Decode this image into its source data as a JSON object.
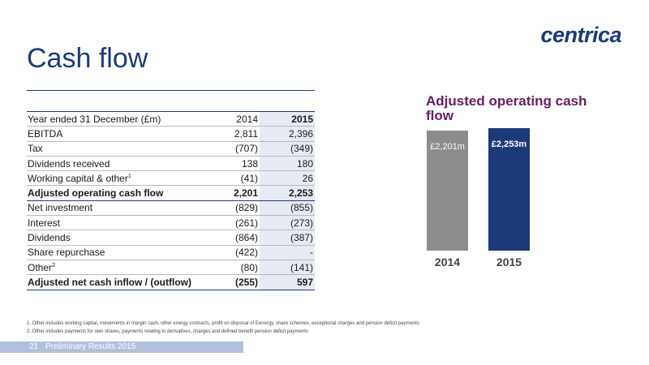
{
  "logo": "centrica",
  "title": "Cash flow",
  "table": {
    "header": {
      "label": "Year ended 31 December (£m)",
      "col1": "2014",
      "col2": "2015"
    },
    "rows": [
      {
        "label": "EBITDA",
        "sup": "",
        "v2014": "2,811",
        "v2015": "2,396",
        "bold": false
      },
      {
        "label": "Tax",
        "sup": "",
        "v2014": "(707)",
        "v2015": "(349)",
        "bold": false
      },
      {
        "label": "Dividends received",
        "sup": "",
        "v2014": "138",
        "v2015": "180",
        "bold": false
      },
      {
        "label": "Working capital & other",
        "sup": "1",
        "v2014": "(41)",
        "v2015": "26",
        "bold": false
      },
      {
        "label": "Adjusted operating cash flow",
        "sup": "",
        "v2014": "2,201",
        "v2015": "2,253",
        "bold": true
      },
      {
        "label": "Net investment",
        "sup": "",
        "v2014": "(829)",
        "v2015": "(855)",
        "bold": false
      },
      {
        "label": "Interest",
        "sup": "",
        "v2014": "(261)",
        "v2015": "(273)",
        "bold": false
      },
      {
        "label": "Dividends",
        "sup": "",
        "v2014": "(864)",
        "v2015": "(387)",
        "bold": false
      },
      {
        "label": "Share repurchase",
        "sup": "",
        "v2014": "(422)",
        "v2015": "-",
        "bold": false
      },
      {
        "label": "Other",
        "sup": "2",
        "v2014": "(80)",
        "v2015": "(141)",
        "bold": false
      },
      {
        "label": "Adjusted net cash inflow / (outflow)",
        "sup": "",
        "v2014": "(255)",
        "v2015": "597",
        "bold": true
      }
    ]
  },
  "chart_data": {
    "type": "bar",
    "title": "Adjusted operating cash flow",
    "categories": [
      "2014",
      "2015"
    ],
    "values": [
      2201,
      2253
    ],
    "value_labels": [
      "£2,201m",
      "£2,253m"
    ],
    "bar_colors": [
      "#8c8c8c",
      "#1c3a7a"
    ],
    "value_label_colors": [
      "#ffffff",
      "#ffffff"
    ],
    "xlabel": "",
    "ylabel": ""
  },
  "footnotes": [
    "1. Other includes working capital, movements in margin cash, other energy contracts, profit on disposal of Eenergy, share schemes, exceptional charges and pension deficit payments",
    "2. Other includes payments for own shares, payments relating to derivatives, charges and defined benefit pension deficit payments"
  ],
  "footer": {
    "page": "21",
    "text": "Preliminary Results 2015"
  },
  "colors": {
    "brand": "#1c3a7a",
    "chart_title": "#6b1d5e",
    "footer": "#b3c0dc"
  }
}
